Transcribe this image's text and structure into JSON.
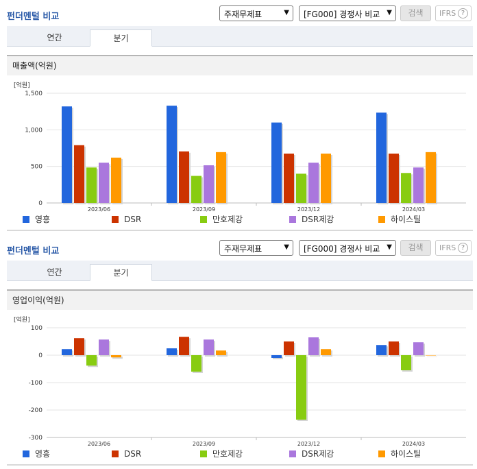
{
  "panels": [
    {
      "title": "펀더멘털 비교",
      "select1": "주재무제표",
      "select2": "[FG000] 경쟁사 비교",
      "search_label": "검색",
      "ifrs_label": "IFRS",
      "help": "?",
      "tabs": [
        "연간",
        "분기"
      ],
      "active_tab": "분기",
      "chart_title": "매출액(억원)",
      "unit_label": "[억원]"
    },
    {
      "title": "펀더멘털 비교",
      "select1": "주재무제표",
      "select2": "[FG000] 경쟁사 비교",
      "search_label": "검색",
      "ifrs_label": "IFRS",
      "help": "?",
      "tabs": [
        "연간",
        "분기"
      ],
      "active_tab": "분기",
      "chart_title": "영업이익(억원)",
      "unit_label": "[억원]"
    }
  ],
  "colors": [
    "#2266dd",
    "#cc3300",
    "#88cc11",
    "#aa77dd",
    "#ff9900"
  ],
  "chart_data": [
    {
      "type": "bar",
      "title": "매출액(억원)",
      "categories": [
        "2023/06",
        "2023/09",
        "2023/12",
        "2024/03"
      ],
      "ylim": [
        0,
        1500
      ],
      "yticks": [
        0,
        500,
        1000,
        1500
      ],
      "ytick_labels": [
        "0",
        "500",
        "1,000",
        "1,500"
      ],
      "series": [
        {
          "name": "영흥",
          "values": [
            1320,
            1330,
            1100,
            1235
          ]
        },
        {
          "name": "DSR",
          "values": [
            790,
            705,
            675,
            675
          ]
        },
        {
          "name": "만호제강",
          "values": [
            485,
            370,
            400,
            410
          ]
        },
        {
          "name": "DSR제강",
          "values": [
            550,
            515,
            550,
            485
          ]
        },
        {
          "name": "하이스틸",
          "values": [
            620,
            695,
            675,
            695
          ]
        }
      ]
    },
    {
      "type": "bar",
      "title": "영업이익(억원)",
      "categories": [
        "2023/06",
        "2023/09",
        "2023/12",
        "2024/03"
      ],
      "ylim": [
        -300,
        100
      ],
      "yticks": [
        -300,
        -200,
        -100,
        0,
        100
      ],
      "ytick_labels": [
        "-300",
        "-200",
        "-100",
        "0",
        "100"
      ],
      "series": [
        {
          "name": "영흥",
          "values": [
            22,
            25,
            -10,
            37
          ]
        },
        {
          "name": "DSR",
          "values": [
            62,
            67,
            50,
            50
          ]
        },
        {
          "name": "만호제강",
          "values": [
            -38,
            -60,
            -235,
            -55
          ]
        },
        {
          "name": "DSR제강",
          "values": [
            57,
            57,
            65,
            47
          ]
        },
        {
          "name": "하이스틸",
          "values": [
            -8,
            17,
            22,
            0
          ]
        }
      ]
    }
  ]
}
